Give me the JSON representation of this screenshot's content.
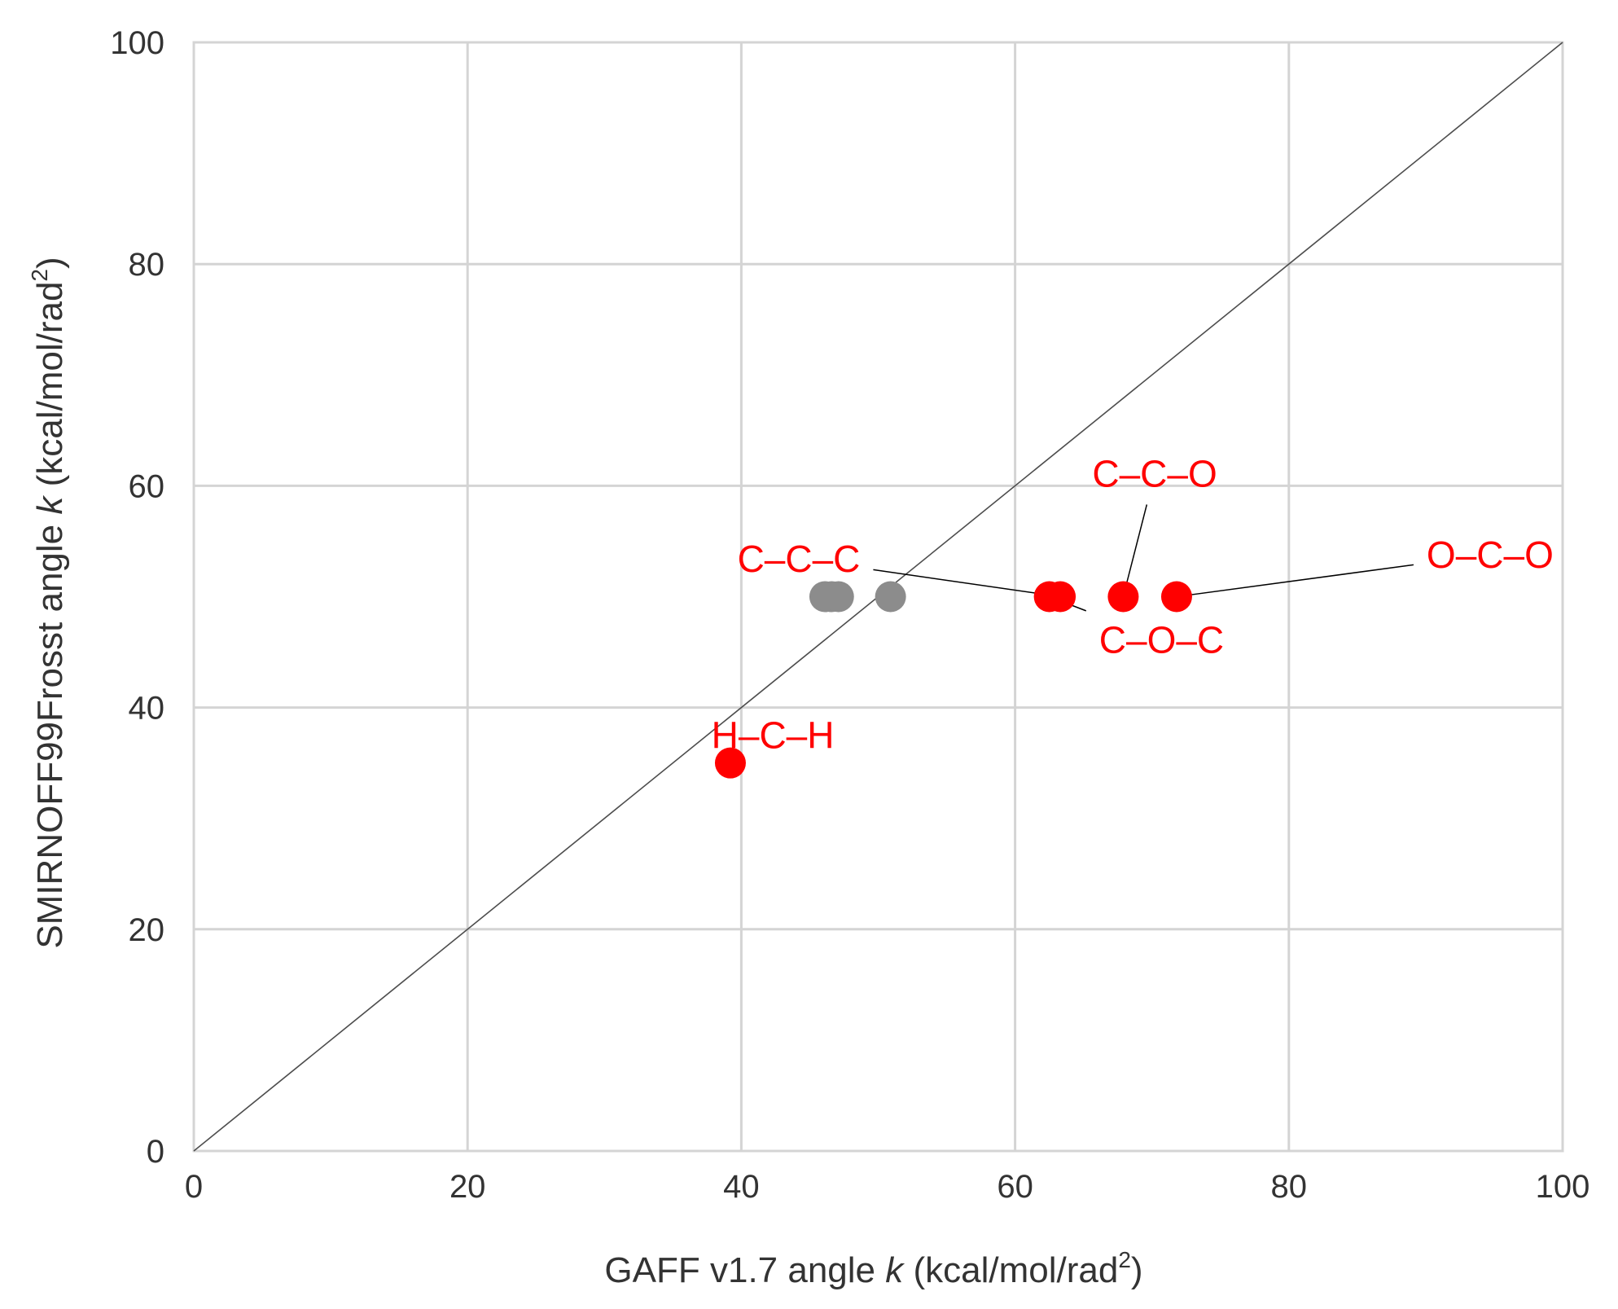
{
  "chart_data": {
    "type": "scatter",
    "xlabel": {
      "prefix": "GAFF v1.7 angle ",
      "symbol": "k",
      "unit": "(kcal/mol/rad",
      "sup": "2",
      "close": ")"
    },
    "ylabel": {
      "prefix": "SMIRNOFF99Frosst angle ",
      "symbol": "k",
      "unit": "(kcal/mol/rad",
      "sup": "2",
      "close": ")"
    },
    "xlim": [
      0,
      100
    ],
    "ylim": [
      0,
      100
    ],
    "xticks": [
      "0",
      "20",
      "40",
      "60",
      "80",
      "100"
    ],
    "yticks": [
      "0",
      "20",
      "40",
      "60",
      "80",
      "100"
    ],
    "grid": true,
    "diagonal": true,
    "colors": {
      "highlight": "#ff0000",
      "other": "#8c8c8c",
      "grid": "#d4d4d4",
      "diagonal": "#4d4d4d"
    },
    "points": [
      {
        "x": 46.1,
        "y": 50,
        "color": "other"
      },
      {
        "x": 46.6,
        "y": 50,
        "color": "other"
      },
      {
        "x": 47.1,
        "y": 50,
        "color": "other"
      },
      {
        "x": 50.9,
        "y": 50,
        "color": "other"
      },
      {
        "x": 39.2,
        "y": 35,
        "color": "highlight"
      },
      {
        "x": 62.5,
        "y": 50,
        "color": "highlight"
      },
      {
        "x": 63.3,
        "y": 50,
        "color": "highlight"
      },
      {
        "x": 67.9,
        "y": 50,
        "color": "highlight"
      },
      {
        "x": 71.8,
        "y": 50,
        "color": "highlight"
      }
    ],
    "annotations": [
      {
        "text": "H–C–H",
        "x": 42.3,
        "y": 37.5,
        "point_x": 39.2,
        "point_y": 35
      },
      {
        "text": "C–C–C",
        "x": 44.2,
        "y": 53.4,
        "point_x": 63.3,
        "point_y": 50
      },
      {
        "text": "C–O–C",
        "x": 70.7,
        "y": 46.1,
        "point_x": 62.5,
        "point_y": 50
      },
      {
        "text": "C–C–O",
        "x": 70.2,
        "y": 61.1,
        "point_x": 67.9,
        "point_y": 50
      },
      {
        "text": "O–C–O",
        "x": 94.7,
        "y": 53.8,
        "point_x": 71.8,
        "point_y": 50
      }
    ]
  }
}
